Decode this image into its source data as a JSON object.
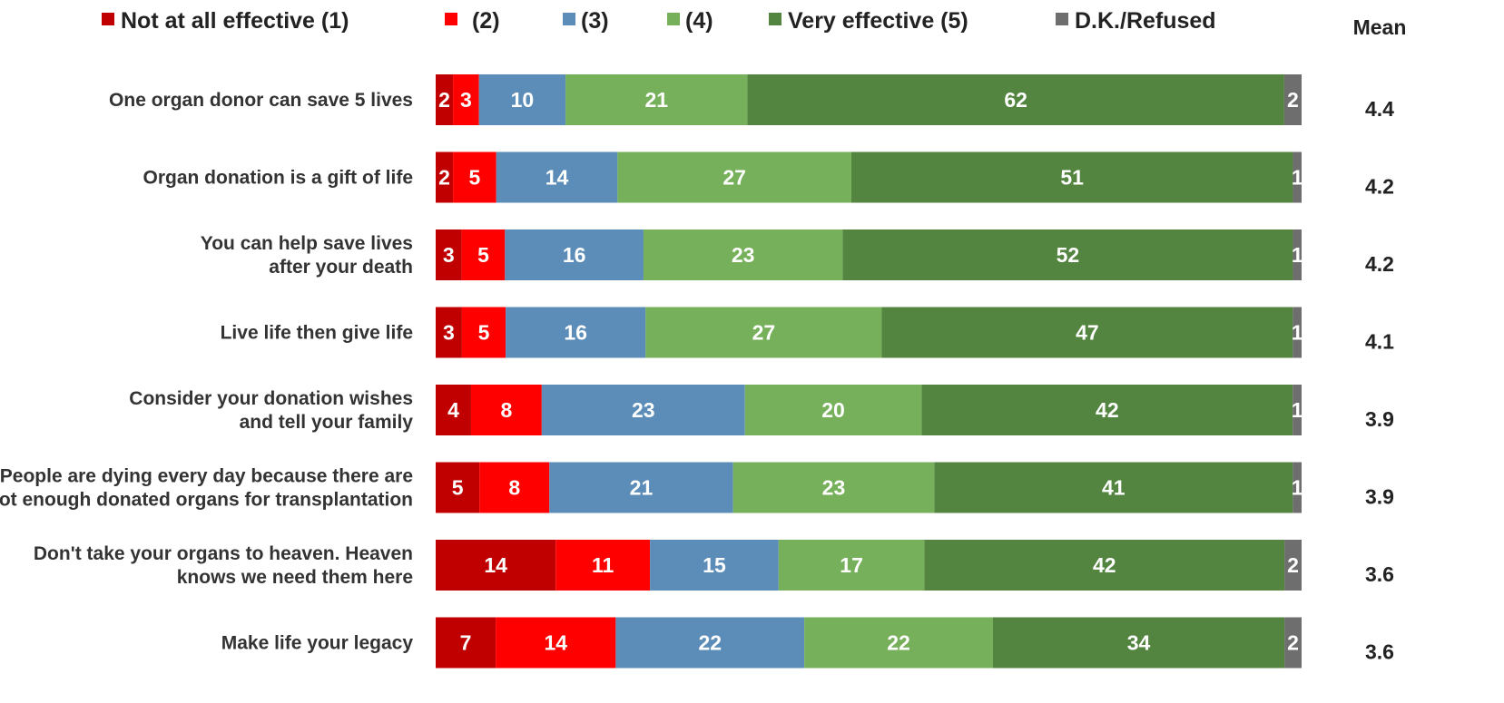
{
  "chart_data": {
    "type": "bar",
    "orientation": "horizontal",
    "stacked": true,
    "legend_position": "top",
    "grid": false,
    "xlim": [
      0,
      100
    ],
    "legend": [
      {
        "label": "Not at all effective (1)",
        "color": "#c00000"
      },
      {
        "label": "(2)",
        "color": "#ff0000"
      },
      {
        "label": "(3)",
        "color": "#5b8db8"
      },
      {
        "label": "(4)",
        "color": "#76b05a"
      },
      {
        "label": "Very effective (5)",
        "color": "#548540"
      },
      {
        "label": "D.K./Refused",
        "color": "#6e6e6e"
      }
    ],
    "mean_header": "Mean",
    "rows": [
      {
        "label": [
          "One organ donor can save 5 lives"
        ],
        "values": [
          2,
          3,
          10,
          21,
          62,
          2
        ],
        "mean": "4.4"
      },
      {
        "label": [
          "Organ donation is a gift of life"
        ],
        "values": [
          2,
          5,
          14,
          27,
          51,
          1
        ],
        "mean": "4.2"
      },
      {
        "label": [
          "You can help save lives",
          "after your death"
        ],
        "values": [
          3,
          5,
          16,
          23,
          52,
          1
        ],
        "mean": "4.2"
      },
      {
        "label": [
          "Live life then give life"
        ],
        "values": [
          3,
          5,
          16,
          27,
          47,
          1
        ],
        "mean": "4.1"
      },
      {
        "label": [
          "Consider your donation wishes",
          "and tell your family"
        ],
        "values": [
          4,
          8,
          23,
          20,
          42,
          1
        ],
        "mean": "3.9"
      },
      {
        "label": [
          "People are dying every day because there are",
          "not enough donated organs for transplantation"
        ],
        "values": [
          5,
          8,
          21,
          23,
          41,
          1
        ],
        "mean": "3.9"
      },
      {
        "label": [
          "Don't take your organs to heaven. Heaven",
          "knows we need them here"
        ],
        "values": [
          14,
          11,
          15,
          17,
          42,
          2
        ],
        "mean": "3.6"
      },
      {
        "label": [
          "Make life your legacy"
        ],
        "values": [
          7,
          14,
          22,
          22,
          34,
          2
        ],
        "mean": "3.6"
      }
    ]
  }
}
